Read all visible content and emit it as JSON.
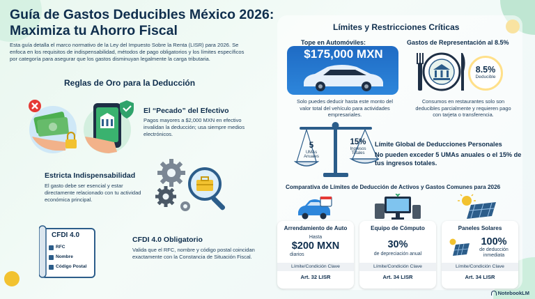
{
  "title": "Guía de Gastos Deducibles México 2026: Maximiza tu Ahorro Fiscal",
  "intro": "Esta guía detalla el marco normativo de la Ley del Impuesto Sobre la Renta (LISR) para 2026. Se enfoca en los requisitos de indispensabilidad, métodos de pago obligatorios y los límites específicos por categoría para asegurar que los gastos disminuyan legalmente la carga tributaria.",
  "rules": {
    "heading": "Reglas de Oro para la Deducción",
    "cash": {
      "title": "El “Pecado” del Efectivo",
      "text": "Pagos mayores a $2,000 MXN en efectivo invalidan la deducción; usa siempre medios electrónicos."
    },
    "indispensable": {
      "title": "Estricta Indispensabilidad",
      "text": "El gasto debe ser esencial y estar directamente relacionado con tu actividad económica principal."
    },
    "cfdi": {
      "title": "CFDI 4.0 Obligatorio",
      "text": "Valida que el RFC, nombre y código postal coincidan exactamente con la Constancia de Situación Fiscal.",
      "doc_title": "CFDI 4.0",
      "fields": [
        "RFC",
        "Nombre",
        "Código Postal"
      ]
    }
  },
  "limits": {
    "heading": "Límites y Restricciones Críticas",
    "auto": {
      "title": "Tope en Automóviles:",
      "amount": "$175,000 MXN",
      "text": "Solo puedes deducir hasta este monto del valor total del vehículo para actividades empresariales."
    },
    "representation": {
      "title": "Gastos de Representación al 8.5%",
      "badge_value": "8.5%",
      "badge_label": "Deducible",
      "text": "Consumos en restaurantes solo son deducibles parcialmente y requieren pago con tarjeta o transferencia."
    },
    "global": {
      "title": "Límite Global de Deducciones Personales",
      "text": "No pueden exceder 5 UMAs anuales o el 15% de tus ingresos totales.",
      "left_value": "5",
      "left_label": "UMAs Anuales",
      "right_value": "15%",
      "right_label": "Ingresos Totales"
    }
  },
  "comparison": {
    "heading": "Comparativa de Límites de Deducción de Activos y Gastos Comunes para 2026",
    "cards": [
      {
        "title": "Arrendamiento de Auto",
        "pre": "Hasta",
        "value": "$200 MXN",
        "sub": "diarios",
        "note": "Límite/Condición Clave",
        "article": "Art. 32 LISR"
      },
      {
        "title": "Equipo de Cómputo",
        "pre": "",
        "value": "30%",
        "sub": "de depreciación anual",
        "note": "Límite/Condición Clave",
        "article": "Art. 34 LISR"
      },
      {
        "title": "Paneles Solares",
        "pre": "",
        "value": "100%",
        "sub": "de deducción inmediata",
        "note": "Límite/Condición Clave",
        "article": "Art. 34 LISR"
      }
    ]
  },
  "footer": {
    "brand": "NotebookLM"
  },
  "colors": {
    "navy": "#0f2e4d",
    "blue": "#2d86db",
    "green": "#2fa36b",
    "yellow": "#f2c230",
    "red": "#e53935"
  }
}
